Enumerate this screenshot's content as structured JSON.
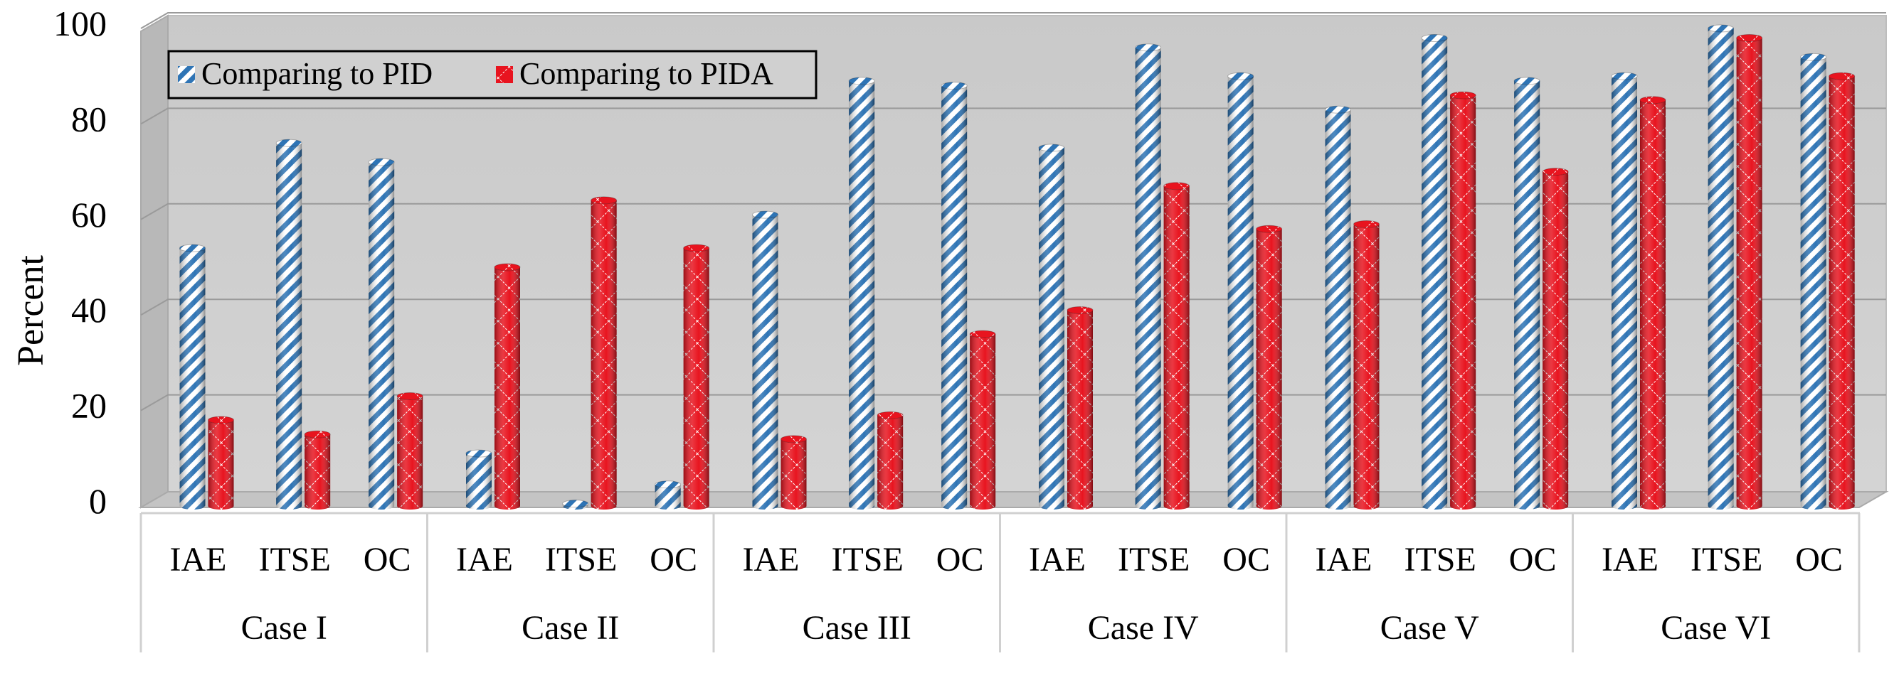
{
  "chart_data": {
    "type": "bar",
    "title": "",
    "xlabel": "",
    "ylabel": "Percent",
    "ylim": [
      0,
      100
    ],
    "yticks": [
      "0",
      "20",
      "40",
      "60",
      "80",
      "100"
    ],
    "groups": [
      "Case I",
      "Case II",
      "Case III",
      "Case IV",
      "Case V",
      "Case VI"
    ],
    "categories": [
      "IAE",
      "ITSE",
      "OC"
    ],
    "legend_position": "top-left",
    "series": [
      {
        "name": "Comparing to PID",
        "color": "#2e74b5",
        "pattern": "diagonal-stripes",
        "values": [
          [
            54,
            76,
            72
          ],
          [
            11,
            0.5,
            4.5
          ],
          [
            61,
            89,
            88
          ],
          [
            75,
            96,
            90
          ],
          [
            83,
            98,
            89
          ],
          [
            90,
            100,
            94
          ]
        ]
      },
      {
        "name": "Comparing to PIDA",
        "color": "#e8141f",
        "pattern": "diamond-lattice",
        "values": [
          [
            18,
            15,
            23
          ],
          [
            50,
            64,
            54
          ],
          [
            14,
            19,
            36
          ],
          [
            41,
            67,
            58
          ],
          [
            59,
            86,
            70
          ],
          [
            85,
            98,
            90
          ]
        ]
      }
    ]
  }
}
